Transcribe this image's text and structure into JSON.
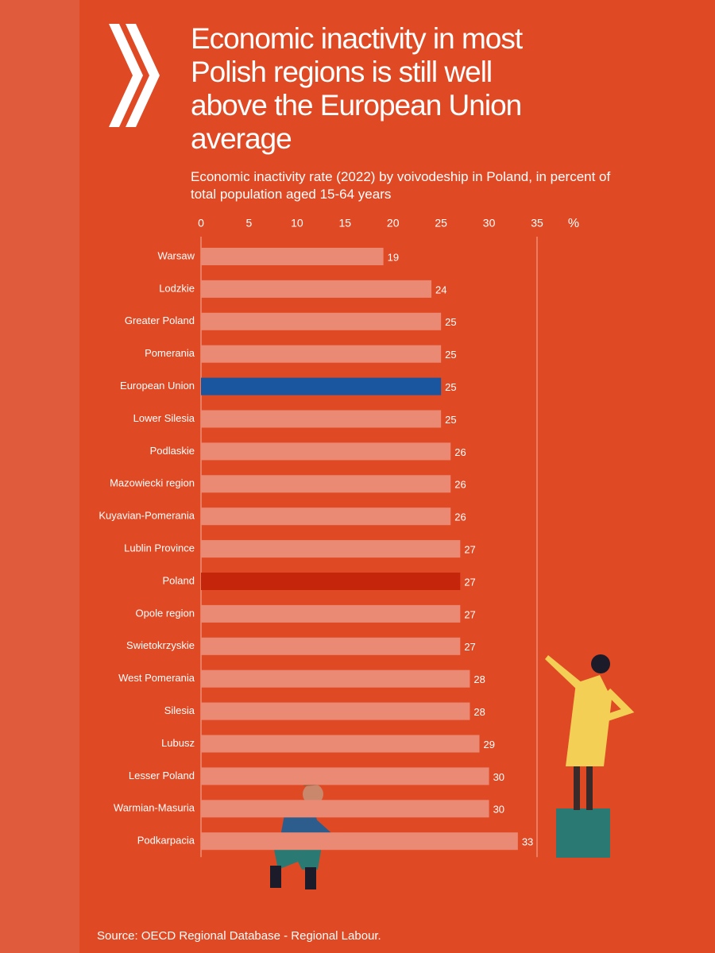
{
  "chart_data": {
    "type": "hbar",
    "title": "Economic inactivity in most Polish regions is still well above the European Union average",
    "subtitle": "Economic inactivity rate (2022) by voivodeship in Poland, in percent of total population aged 15-64 years",
    "x_unit_label": "%",
    "source": "Source: OECD Regional Database - Regional Labour.",
    "categories": [
      "Warsaw",
      "Lodzkie",
      "Greater Poland",
      "Pomerania",
      "European Union",
      "Lower Silesia",
      "Podlaskie",
      "Mazowiecki region",
      "Kuyavian-Pomerania",
      "Lublin Province",
      "Poland",
      "Opole region",
      "Swietokrzyskie",
      "West Pomerania",
      "Silesia",
      "Lubusz",
      "Lesser Poland",
      "Warmian-Masuria",
      "Podkarpacia"
    ],
    "values": [
      19,
      24,
      25,
      25,
      25,
      25,
      26,
      26,
      26,
      27,
      27,
      27,
      27,
      28,
      28,
      29,
      30,
      30,
      33
    ],
    "colors": [
      "#ea8a74",
      "#ea8a74",
      "#ea8a74",
      "#ea8a74",
      "#1a55a0",
      "#ea8a74",
      "#ea8a74",
      "#ea8a74",
      "#ea8a74",
      "#ea8a74",
      "#c4250b",
      "#ea8a74",
      "#ea8a74",
      "#ea8a74",
      "#ea8a74",
      "#ea8a74",
      "#ea8a74",
      "#ea8a74",
      "#ea8a74"
    ],
    "xlim": [
      0,
      35
    ],
    "xticks": [
      0,
      5,
      10,
      15,
      20,
      25,
      30,
      35
    ]
  }
}
